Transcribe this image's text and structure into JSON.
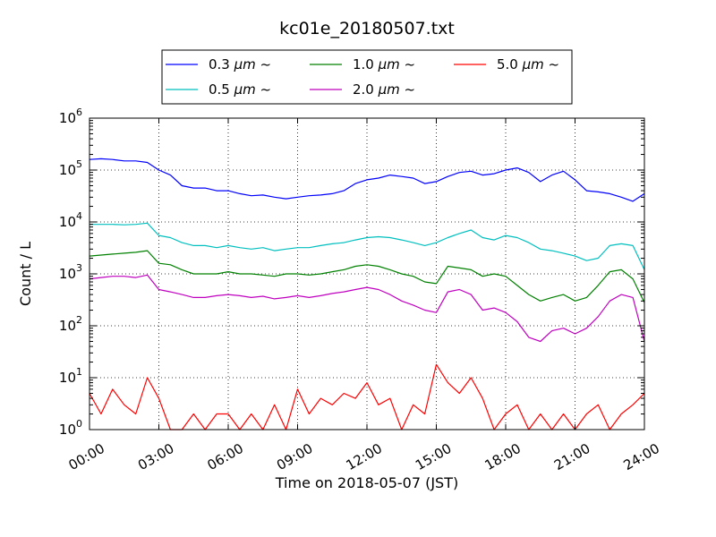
{
  "chart_data": {
    "type": "line",
    "title": "kc01e_20180507.txt",
    "xlabel": "Time on 2018-05-07 (JST)",
    "ylabel": "Count / L",
    "xlim": [
      0,
      24
    ],
    "ylim_exponents": [
      0,
      6
    ],
    "y_scale": "log",
    "grid": true,
    "grid_style": "dotted",
    "legend_location": "upper-center, above plot",
    "x_tick_labels": [
      "00:00",
      "03:00",
      "06:00",
      "09:00",
      "12:00",
      "15:00",
      "18:00",
      "21:00",
      "24:00"
    ],
    "y_tick_base": "10",
    "y_tick_exponents": [
      "0",
      "1",
      "2",
      "3",
      "4",
      "5",
      "6"
    ],
    "legend": [
      {
        "size": "0.3",
        "unit": "μm",
        "suffix": "~",
        "color": "#0000ff"
      },
      {
        "size": "1.0",
        "unit": "μm",
        "suffix": "~",
        "color": "#008000"
      },
      {
        "size": "5.0",
        "unit": "μm",
        "suffix": "~",
        "color": "#ff0000"
      },
      {
        "size": "0.5",
        "unit": "μm",
        "suffix": "~",
        "color": "#00bfbf"
      },
      {
        "size": "2.0",
        "unit": "μm",
        "suffix": "~",
        "color": "#bf00bf"
      }
    ],
    "series": [
      {
        "color": "#0000ff",
        "x": [
          0,
          0.5,
          1,
          1.5,
          2,
          2.5,
          3,
          3.5,
          4,
          4.5,
          5,
          5.5,
          6,
          6.5,
          7,
          7.5,
          8,
          8.5,
          9,
          9.5,
          10,
          10.5,
          11,
          11.5,
          12,
          12.5,
          13,
          13.5,
          14,
          14.5,
          15,
          15.5,
          16,
          16.5,
          17,
          17.5,
          18,
          18.5,
          19,
          19.5,
          20,
          20.5,
          21,
          21.5,
          22,
          22.5,
          23,
          23.5,
          24
        ],
        "y": [
          160000,
          165000,
          160000,
          150000,
          150000,
          140000,
          100000,
          80000,
          50000,
          45000,
          45000,
          40000,
          40000,
          35000,
          32000,
          33000,
          30000,
          28000,
          30000,
          32000,
          33000,
          35000,
          40000,
          55000,
          65000,
          70000,
          80000,
          75000,
          70000,
          55000,
          60000,
          75000,
          90000,
          95000,
          80000,
          85000,
          100000,
          110000,
          90000,
          60000,
          80000,
          95000,
          65000,
          40000,
          38000,
          35000,
          30000,
          25000,
          35000
        ]
      },
      {
        "color": "#00bfbf",
        "x": [
          0,
          0.5,
          1,
          1.5,
          2,
          2.5,
          3,
          3.5,
          4,
          4.5,
          5,
          5.5,
          6,
          6.5,
          7,
          7.5,
          8,
          8.5,
          9,
          9.5,
          10,
          10.5,
          11,
          11.5,
          12,
          12.5,
          13,
          13.5,
          14,
          14.5,
          15,
          15.5,
          16,
          16.5,
          17,
          17.5,
          18,
          18.5,
          19,
          19.5,
          20,
          20.5,
          21,
          21.5,
          22,
          22.5,
          23,
          23.5,
          24
        ],
        "y": [
          9000,
          9000,
          9000,
          8800,
          9000,
          9500,
          5500,
          5000,
          4000,
          3500,
          3500,
          3200,
          3500,
          3200,
          3000,
          3200,
          2800,
          3000,
          3200,
          3200,
          3500,
          3800,
          4000,
          4500,
          5000,
          5200,
          5000,
          4500,
          4000,
          3500,
          4000,
          5000,
          6000,
          7000,
          5000,
          4500,
          5500,
          5000,
          4000,
          3000,
          2800,
          2500,
          2200,
          1800,
          2000,
          3500,
          3800,
          3500,
          1200
        ]
      },
      {
        "color": "#008000",
        "x": [
          0,
          0.5,
          1,
          1.5,
          2,
          2.5,
          3,
          3.5,
          4,
          4.5,
          5,
          5.5,
          6,
          6.5,
          7,
          7.5,
          8,
          8.5,
          9,
          9.5,
          10,
          10.5,
          11,
          11.5,
          12,
          12.5,
          13,
          13.5,
          14,
          14.5,
          15,
          15.5,
          16,
          16.5,
          17,
          17.5,
          18,
          18.5,
          19,
          19.5,
          20,
          20.5,
          21,
          21.5,
          22,
          22.5,
          23,
          23.5,
          24
        ],
        "y": [
          2200,
          2300,
          2400,
          2500,
          2600,
          2800,
          1600,
          1500,
          1200,
          1000,
          1000,
          1000,
          1100,
          1000,
          1000,
          950,
          900,
          1000,
          1000,
          950,
          1000,
          1100,
          1200,
          1400,
          1500,
          1400,
          1200,
          1000,
          900,
          700,
          650,
          1400,
          1300,
          1200,
          900,
          1000,
          900,
          600,
          400,
          300,
          350,
          400,
          300,
          350,
          600,
          1100,
          1200,
          800,
          280
        ]
      },
      {
        "color": "#bf00bf",
        "x": [
          0,
          0.5,
          1,
          1.5,
          2,
          2.5,
          3,
          3.5,
          4,
          4.5,
          5,
          5.5,
          6,
          6.5,
          7,
          7.5,
          8,
          8.5,
          9,
          9.5,
          10,
          10.5,
          11,
          11.5,
          12,
          12.5,
          13,
          13.5,
          14,
          14.5,
          15,
          15.5,
          16,
          16.5,
          17,
          17.5,
          18,
          18.5,
          19,
          19.5,
          20,
          20.5,
          21,
          21.5,
          22,
          22.5,
          23,
          23.5,
          24
        ],
        "y": [
          800,
          850,
          900,
          900,
          850,
          950,
          500,
          450,
          400,
          350,
          350,
          380,
          400,
          380,
          350,
          370,
          330,
          350,
          380,
          350,
          380,
          420,
          450,
          500,
          550,
          500,
          400,
          300,
          250,
          200,
          180,
          450,
          500,
          400,
          200,
          220,
          180,
          120,
          60,
          50,
          80,
          90,
          70,
          90,
          150,
          300,
          400,
          350,
          50
        ]
      },
      {
        "color": "#ff0000",
        "x": [
          0,
          0.5,
          1,
          1.5,
          2,
          2.5,
          3,
          3.5,
          4,
          4.5,
          5,
          5.5,
          6,
          6.5,
          7,
          7.5,
          8,
          8.5,
          9,
          9.5,
          10,
          10.5,
          11,
          11.5,
          12,
          12.5,
          13,
          13.5,
          14,
          14.5,
          15,
          15.5,
          16,
          16.5,
          17,
          17.5,
          18,
          18.5,
          19,
          19.5,
          20,
          20.5,
          21,
          21.5,
          22,
          22.5,
          23,
          23.5,
          24
        ],
        "y": [
          5,
          2,
          6,
          3,
          2,
          10,
          4,
          1,
          1,
          2,
          1,
          2,
          2,
          1,
          2,
          1,
          3,
          1,
          6,
          2,
          4,
          3,
          5,
          4,
          8,
          3,
          4,
          1,
          3,
          2,
          18,
          8,
          5,
          10,
          4,
          1,
          2,
          3,
          1,
          2,
          1,
          2,
          1,
          2,
          3,
          1,
          2,
          3,
          5
        ]
      }
    ]
  }
}
